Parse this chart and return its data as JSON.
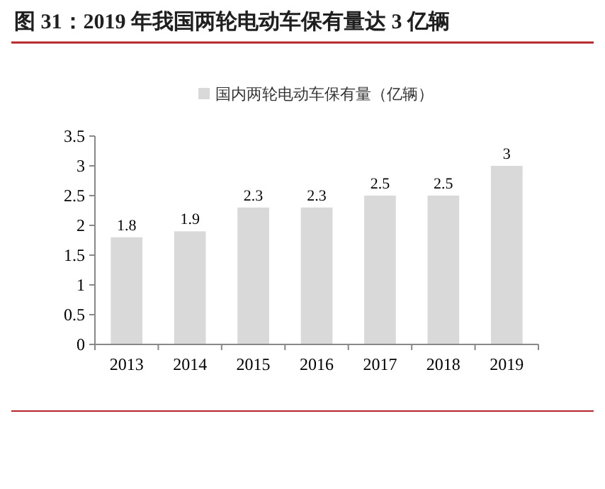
{
  "chart_data": {
    "type": "bar",
    "title": "图 31：2019 年我国两轮电动车保有量达 3 亿辆",
    "categories": [
      "2013",
      "2014",
      "2015",
      "2016",
      "2017",
      "2018",
      "2019"
    ],
    "series": [
      {
        "name": "国内两轮电动车保有量（亿辆）",
        "color": "#d9d9d9",
        "values": [
          1.8,
          1.9,
          2.3,
          2.3,
          2.5,
          2.5,
          3
        ]
      }
    ],
    "ylim": [
      0,
      3.5
    ],
    "yticks": [
      0,
      0.5,
      1,
      1.5,
      2,
      2.5,
      3,
      3.5
    ],
    "data_labels": true,
    "legend": "top",
    "grid": false
  }
}
